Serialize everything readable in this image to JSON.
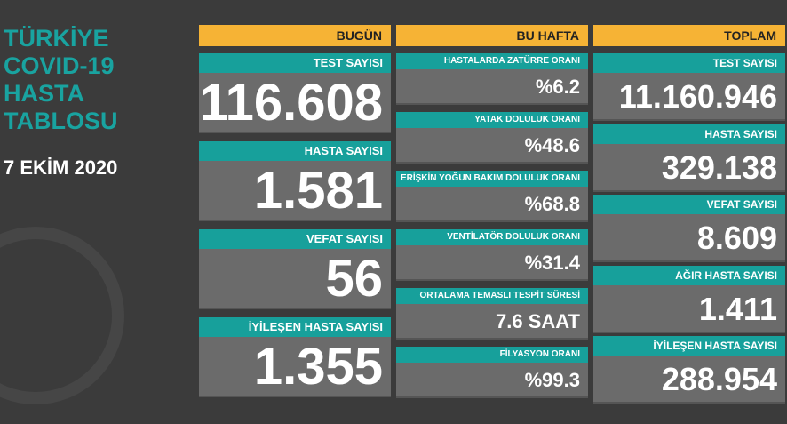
{
  "title": [
    "TÜRKİYE",
    "COVID-19",
    "HASTA",
    "TABLOSU"
  ],
  "date": "7 EKİM 2020",
  "columns": [
    {
      "header": "BUGÜN",
      "cards": [
        {
          "label": "TEST SAYISI",
          "value": "116.608"
        },
        {
          "label": "HASTA SAYISI",
          "value": "1.581"
        },
        {
          "label": "VEFAT SAYISI",
          "value": "56"
        },
        {
          "label": "İYİLEŞEN HASTA SAYISI",
          "value": "1.355"
        }
      ]
    },
    {
      "header": "BU HAFTA",
      "cards": [
        {
          "label": "HASTALARDA ZATÜRRE ORANI",
          "value": "%6.2"
        },
        {
          "label": "YATAK DOLULUK ORANI",
          "value": "%48.6"
        },
        {
          "label": "ERİŞKİN YOĞUN BAKIM DOLULUK ORANI",
          "value": "%68.8"
        },
        {
          "label": "VENTİLATÖR DOLULUK ORANI",
          "value": "%31.4"
        },
        {
          "label": "ORTALAMA TEMASLI TESPİT SÜRESİ",
          "value": "7.6 SAAT"
        },
        {
          "label": "FİLYASYON ORANI",
          "value": "%99.3"
        }
      ]
    },
    {
      "header": "TOPLAM",
      "cards": [
        {
          "label": "TEST SAYISI",
          "value": "11.160.946"
        },
        {
          "label": "HASTA SAYISI",
          "value": "329.138"
        },
        {
          "label": "VEFAT SAYISI",
          "value": "8.609"
        },
        {
          "label": "AĞIR HASTA SAYISI",
          "value": "1.411"
        },
        {
          "label": "İYİLEŞEN HASTA SAYISI",
          "value": "288.954"
        }
      ]
    }
  ]
}
